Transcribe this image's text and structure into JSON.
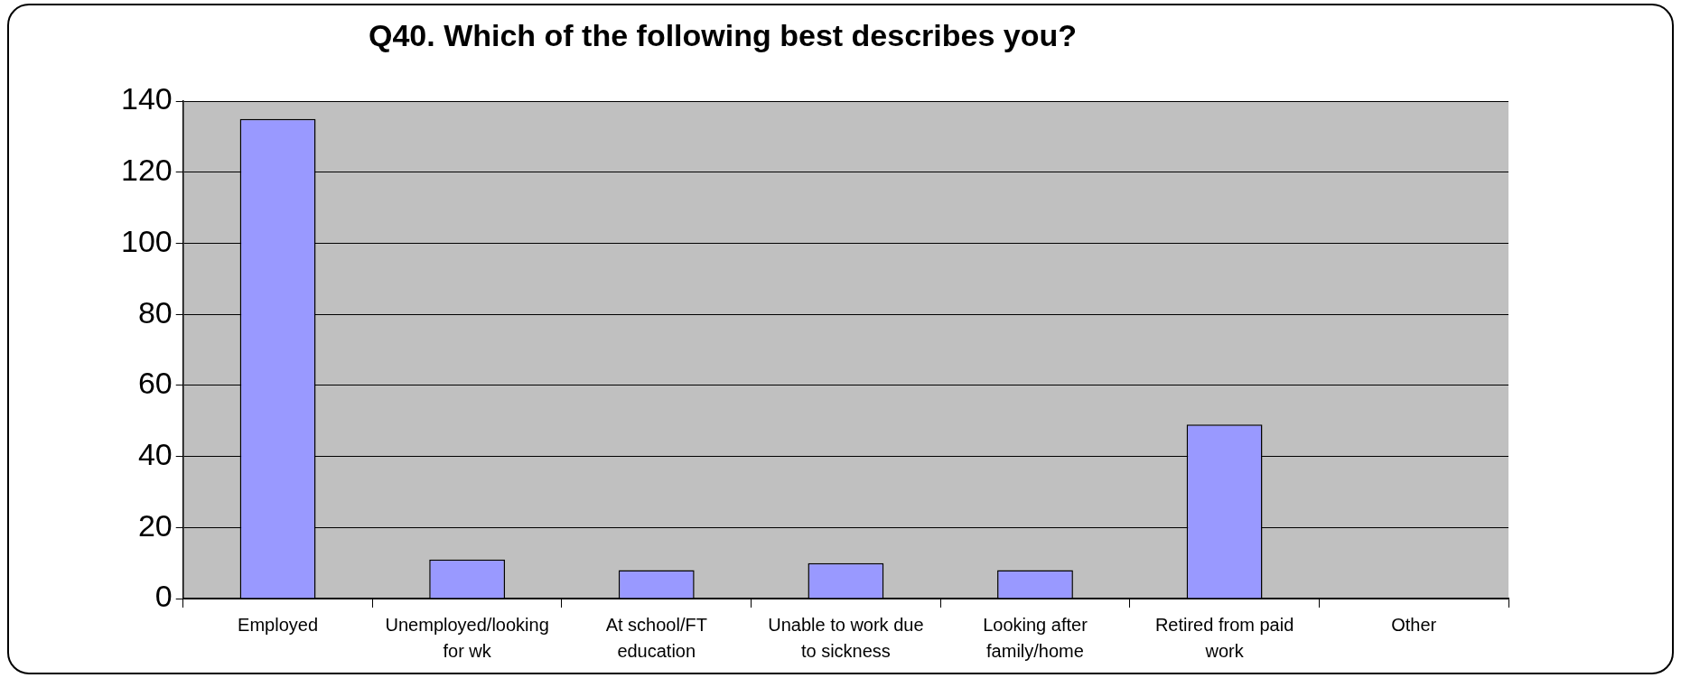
{
  "chart_data": {
    "type": "bar",
    "title": "Q40. Which of the following best describes you?",
    "categories": [
      "Employed",
      "Unemployed/looking for wk",
      "At school/FT education",
      "Unable to work due to sickness",
      "Looking after family/home",
      "Retired from paid work",
      "Other"
    ],
    "values": [
      135,
      11,
      8,
      10,
      8,
      49,
      0
    ],
    "color": "#9999ff",
    "ylim": [
      0,
      140
    ],
    "yticks": [
      0,
      20,
      40,
      60,
      80,
      100,
      120,
      140
    ],
    "grid": "y"
  }
}
